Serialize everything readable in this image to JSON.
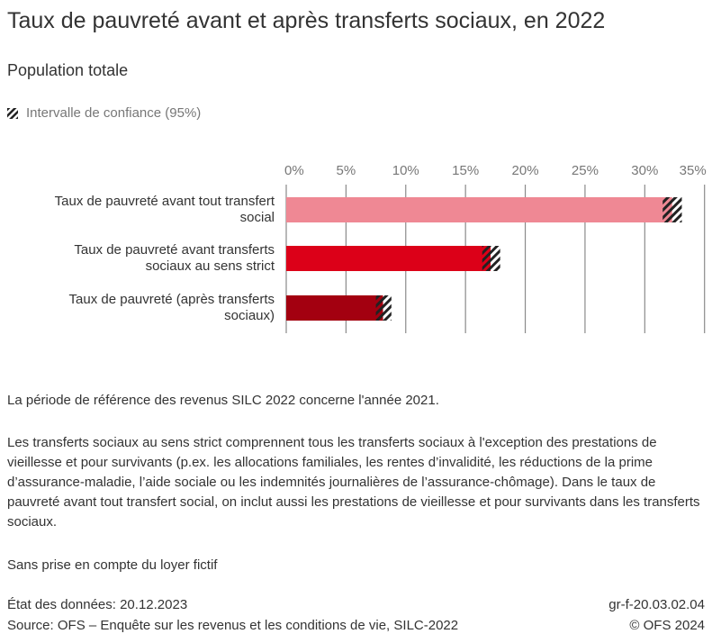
{
  "title": "Taux de pauvreté avant et après transferts sociaux, en 2022",
  "subtitle": "Population totale",
  "legend": {
    "ci_label": "Intervalle de confiance (95%)"
  },
  "chart_data": {
    "type": "bar",
    "orientation": "horizontal",
    "categories": [
      "Taux de pauvreté avant tout transfert social",
      "Taux de pauvreté avant transferts sociaux au sens strict",
      "Taux de pauvreté (après transferts sociaux)"
    ],
    "category_lines": [
      [
        "Taux de pauvreté avant tout transfert",
        "social"
      ],
      [
        "Taux de pauvreté avant transferts",
        "sociaux au sens strict"
      ],
      [
        "Taux de pauvreté (après transferts",
        "sociaux)"
      ]
    ],
    "values": [
      32.3,
      17.1,
      8.1
    ],
    "ci_low": [
      31.5,
      16.4,
      7.5
    ],
    "ci_high": [
      33.1,
      17.9,
      8.8
    ],
    "colors": [
      "#ef8894",
      "#dc0018",
      "#a30010"
    ],
    "xlim": [
      0,
      35
    ],
    "ticks": [
      0,
      5,
      10,
      15,
      20,
      25,
      30,
      35
    ],
    "tick_labels": [
      "0%",
      "5%",
      "10%",
      "15%",
      "20%",
      "25%",
      "30%",
      "35%"
    ],
    "grid": true,
    "legend_position": "top-left"
  },
  "notes": [
    "La période de référence des revenus SILC 2022 concerne l'année 2021.",
    "Les transferts sociaux au sens strict comprennent tous les transferts sociaux à l'exception des prestations de vieillesse et pour survivants (p.ex. les allocations familiales, les rentes d’invalidité, les réductions de la prime d’assurance-maladie, l’aide sociale ou les indemnités journalières de l’assurance-chômage). Dans le taux de pauvreté avant tout transfert social, on inclut aussi les prestations de vieillesse et pour survivants dans les transferts sociaux.",
    "Sans prise en compte du loyer fictif"
  ],
  "footer": {
    "date": "État des données: 20.12.2023",
    "source": "Source: OFS – Enquête sur les revenus et les conditions de vie, SILC-2022",
    "code": "gr-f-20.03.02.04",
    "copyright": "© OFS 2024"
  }
}
